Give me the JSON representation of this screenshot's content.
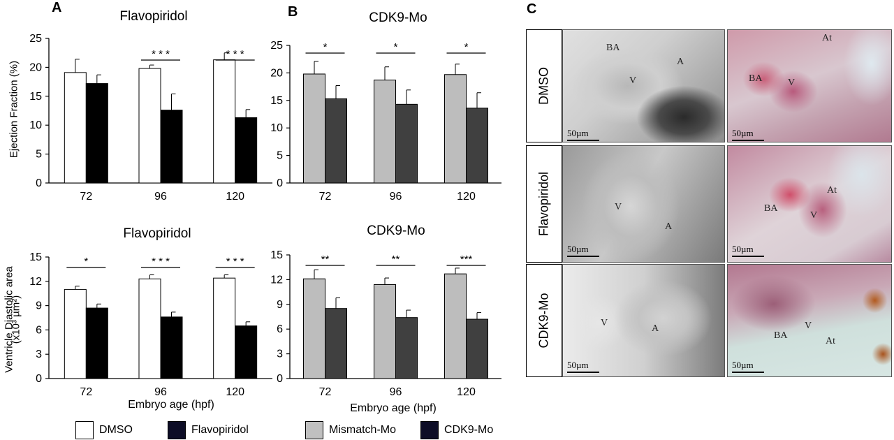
{
  "panels": {
    "a": "A",
    "b": "B",
    "c": "C"
  },
  "axis_texts": {
    "ef_ylabel": "Ejection Fraction (%)",
    "vda_ylabel_line1": "Ventricle Diastolic area",
    "vda_ylabel_line2": "(x10³ µm²)",
    "xlabel": "Embryo age (hpf)"
  },
  "legend": [
    {
      "label": "DMSO",
      "color": "#ffffff"
    },
    {
      "label": "Flavopiridol",
      "color": "#0d0d26"
    },
    {
      "label": "Mismatch-Mo",
      "color": "#c0c0c0"
    },
    {
      "label": "CDK9-Mo",
      "color": "#0d0d26"
    }
  ],
  "chart_data": [
    {
      "id": "a-top",
      "type": "bar",
      "title": "Flavopiridol",
      "ylabel": "Ejection Fraction (%)",
      "xlabel": "",
      "categories": [
        "72",
        "96",
        "120"
      ],
      "ylim": [
        0,
        25
      ],
      "yticks": [
        0,
        5,
        10,
        15,
        20,
        25
      ],
      "series": [
        {
          "name": "DMSO",
          "values": [
            19.1,
            19.8,
            21.3
          ],
          "errors": [
            2.3,
            0.6,
            1.2
          ],
          "color": "#ffffff"
        },
        {
          "name": "Flavopiridol",
          "values": [
            17.2,
            12.6,
            11.3
          ],
          "errors": [
            1.5,
            2.8,
            1.4
          ],
          "color": "#000000"
        }
      ],
      "significance": [
        "",
        "* * *",
        "* * *"
      ]
    },
    {
      "id": "b-top",
      "type": "bar",
      "title": "CDK9-Mo",
      "ylabel": "",
      "xlabel": "",
      "categories": [
        "72",
        "96",
        "120"
      ],
      "ylim": [
        0,
        25
      ],
      "yticks": [
        0,
        5,
        10,
        15,
        20,
        25
      ],
      "series": [
        {
          "name": "Mismatch-Mo",
          "values": [
            19.8,
            18.7,
            19.7
          ],
          "errors": [
            2.3,
            2.4,
            1.9
          ],
          "color": "#bdbdbd"
        },
        {
          "name": "CDK9-Mo",
          "values": [
            15.3,
            14.3,
            13.6
          ],
          "errors": [
            2.4,
            2.6,
            2.8
          ],
          "color": "#404040"
        }
      ],
      "significance": [
        "*",
        "*",
        "*"
      ]
    },
    {
      "id": "a-bottom",
      "type": "bar",
      "title": "Flavopiridol",
      "ylabel": "Ventricle Diastolic area (x10³ µm²)",
      "xlabel": "Embryo age (hpf)",
      "categories": [
        "72",
        "96",
        "120"
      ],
      "ylim": [
        0,
        15
      ],
      "yticks": [
        0,
        3,
        6,
        9,
        12,
        15
      ],
      "series": [
        {
          "name": "DMSO",
          "values": [
            11.0,
            12.3,
            12.4
          ],
          "errors": [
            0.4,
            0.5,
            0.4
          ],
          "color": "#ffffff"
        },
        {
          "name": "Flavopiridol",
          "values": [
            8.7,
            7.6,
            6.5
          ],
          "errors": [
            0.5,
            0.6,
            0.5
          ],
          "color": "#000000"
        }
      ],
      "significance": [
        "*",
        "* * *",
        "* * *"
      ]
    },
    {
      "id": "b-bottom",
      "type": "bar",
      "title": "CDK9-Mo",
      "ylabel": "",
      "xlabel": "Embryo age (hpf)",
      "categories": [
        "72",
        "96",
        "120"
      ],
      "ylim": [
        0,
        15
      ],
      "yticks": [
        0,
        3,
        6,
        9,
        12,
        15
      ],
      "series": [
        {
          "name": "Mismatch-Mo",
          "values": [
            12.1,
            11.4,
            12.7
          ],
          "errors": [
            1.1,
            0.8,
            0.7
          ],
          "color": "#bdbdbd"
        },
        {
          "name": "CDK9-Mo",
          "values": [
            8.5,
            7.4,
            7.2
          ],
          "errors": [
            1.3,
            0.9,
            0.8
          ],
          "color": "#404040"
        }
      ],
      "significance": [
        "**",
        "**",
        "***"
      ]
    }
  ],
  "micrographs": {
    "rows": [
      "DMSO",
      "Flavopiridol",
      "CDK9-Mo"
    ],
    "scale": "50µm",
    "left": [
      {
        "labels": [
          "BA",
          "A",
          "V"
        ]
      },
      {
        "labels": [
          "V",
          "A"
        ]
      },
      {
        "labels": [
          "V",
          "A"
        ]
      }
    ],
    "right": [
      {
        "labels": [
          "At",
          "BA",
          "V"
        ]
      },
      {
        "labels": [
          "At",
          "BA",
          "V"
        ]
      },
      {
        "labels": [
          "BA",
          "V",
          "At"
        ]
      }
    ]
  }
}
